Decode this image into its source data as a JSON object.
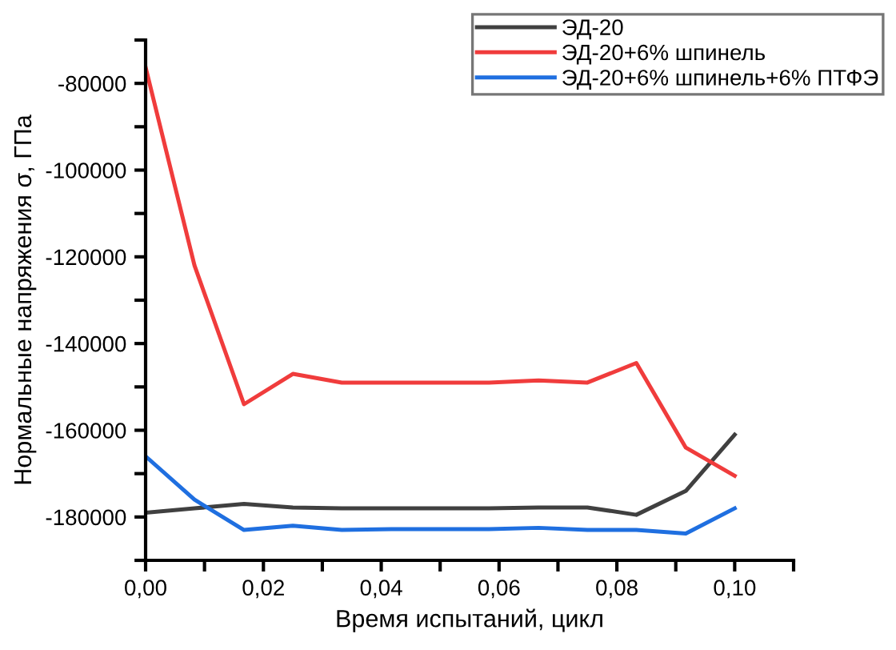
{
  "chart_data": {
    "type": "line",
    "xlabel": "Время испытаний, цикл",
    "ylabel": "Нормальные напряжения σ, ГПа",
    "x": [
      0,
      0.0083,
      0.0167,
      0.025,
      0.0333,
      0.0417,
      0.05,
      0.0583,
      0.0667,
      0.075,
      0.0833,
      0.0917,
      0.1
    ],
    "series": [
      {
        "name": "ЭД-20",
        "color": "#404040",
        "values": [
          -179000,
          -178000,
          -177000,
          -177800,
          -178000,
          -178000,
          -178000,
          -178000,
          -177800,
          -177800,
          -179500,
          -174000,
          -161000
        ]
      },
      {
        "name": "ЭД-20+6% шпинель",
        "color": "#f03c3c",
        "values": [
          -76300,
          -122000,
          -154000,
          -147000,
          -149000,
          -149000,
          -149000,
          -149000,
          -148500,
          -149000,
          -144500,
          -164000,
          -170500
        ]
      },
      {
        "name": "ЭД-20+6% шпинель+6% ПТФЭ",
        "color": "#1f6fe0",
        "values": [
          -166000,
          -176000,
          -183000,
          -182000,
          -183000,
          -182800,
          -182800,
          -182800,
          -182500,
          -183000,
          -183000,
          -183800,
          -178000
        ]
      }
    ],
    "xlim": [
      0,
      0.11
    ],
    "xticks": [
      {
        "value": 0,
        "label": "0,00"
      },
      {
        "value": 0.01,
        "label": null
      },
      {
        "value": 0.02,
        "label": "0,02"
      },
      {
        "value": 0.03,
        "label": null
      },
      {
        "value": 0.04,
        "label": "0,04"
      },
      {
        "value": 0.05,
        "label": null
      },
      {
        "value": 0.06,
        "label": "0,06"
      },
      {
        "value": 0.07,
        "label": null
      },
      {
        "value": 0.08,
        "label": "0,08"
      },
      {
        "value": 0.09,
        "label": null
      },
      {
        "value": 0.1,
        "label": "0,10"
      },
      {
        "value": 0.11,
        "label": null
      }
    ],
    "ylim": [
      -190000,
      -70000
    ],
    "yticks": [
      {
        "value": -190000,
        "label": null
      },
      -180000,
      {
        "value": -170000,
        "label": null
      },
      -160000,
      {
        "value": -150000,
        "label": null
      },
      -140000,
      {
        "value": -130000,
        "label": null
      },
      -120000,
      {
        "value": -110000,
        "label": null
      },
      -100000,
      {
        "value": -90000,
        "label": null
      },
      -80000,
      {
        "value": -70000,
        "label": null
      }
    ],
    "grid": false,
    "legend": "top right",
    "marker": "none",
    "line_style": "solid"
  }
}
